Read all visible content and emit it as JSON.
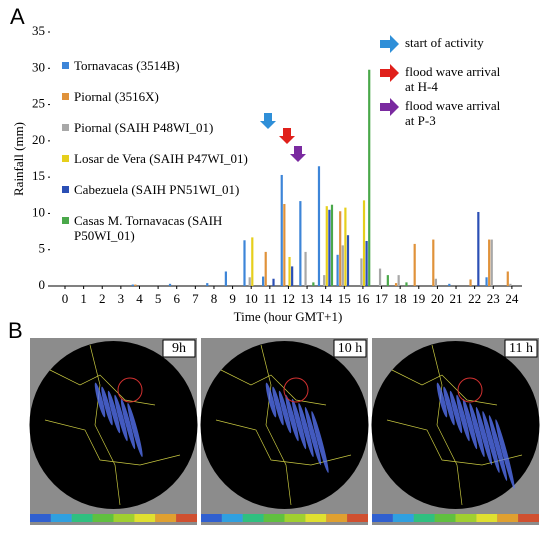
{
  "panel_a": "A",
  "panel_b": "B",
  "chart_data": {
    "type": "bar",
    "ylabel": "Rainfall (mm)",
    "xlabel": "Time (hour GMT+1)",
    "categories": [
      "0",
      "1",
      "2",
      "3",
      "4",
      "5",
      "6",
      "7",
      "8",
      "9",
      "10",
      "11",
      "12",
      "13",
      "14",
      "15",
      "16",
      "17",
      "18",
      "19",
      "20",
      "21",
      "22",
      "23",
      "24"
    ],
    "ylim": [
      0,
      35
    ],
    "yticks": [
      0,
      5,
      10,
      15,
      20,
      25,
      30,
      35
    ],
    "series": [
      {
        "name": "Tornavacas (3514B)",
        "color": "#3d85d8",
        "values": [
          0,
          0,
          0,
          0,
          0.2,
          0,
          0.3,
          0,
          0.4,
          2,
          6.3,
          1.3,
          15.3,
          11.7,
          16.5,
          4.3,
          0,
          0,
          0,
          0,
          0,
          0.3,
          0,
          1.2,
          0
        ]
      },
      {
        "name": "Piornal (3516X)",
        "color": "#e0923a",
        "values": [
          0,
          0,
          0,
          0,
          0.2,
          0,
          0,
          0,
          0,
          0,
          0,
          4.7,
          11.3,
          0,
          0,
          10.3,
          0,
          0,
          0.4,
          5.8,
          6.4,
          0,
          0.9,
          6.4,
          2
        ]
      },
      {
        "name": "Piornal (SAIH P48WI_01)",
        "color": "#a8a8a8",
        "values": [
          0,
          0,
          0,
          0,
          0,
          0,
          0,
          0,
          0,
          0,
          1.2,
          0,
          0,
          4.7,
          1.5,
          5.6,
          3.8,
          2.4,
          1.5,
          0,
          1,
          0,
          0,
          6.4,
          0.3
        ]
      },
      {
        "name": "Losar de Vera (SAIH P47WI_01)",
        "color": "#e6cf1c",
        "values": [
          0,
          0,
          0,
          0,
          0,
          0,
          0,
          0,
          0,
          0,
          6.7,
          0,
          4,
          0,
          11,
          10.8,
          11.8,
          0,
          0,
          0,
          0,
          0,
          0,
          0,
          0
        ]
      },
      {
        "name": "Cabezuela (SAIH PN51WI_01)",
        "color": "#2b4fb5",
        "values": [
          0,
          0,
          0,
          0,
          0,
          0,
          0,
          0,
          0,
          0,
          0,
          1,
          2.7,
          0,
          10.5,
          7,
          6.2,
          0,
          0,
          0,
          0,
          0,
          10.2,
          0,
          0
        ]
      },
      {
        "name": "Casas M. Tornavacas (SAIH P50WI_01)",
        "color": "#4aa84a",
        "values": [
          0,
          0,
          0,
          0,
          0,
          0,
          0,
          0,
          0,
          0,
          0,
          0,
          0,
          0.5,
          11.2,
          0,
          29.8,
          1.5,
          0.5,
          0,
          0,
          0,
          0,
          0,
          0
        ]
      }
    ],
    "annotations": [
      {
        "lines": [
          "start of activity"
        ],
        "color": "#2f8fd8"
      },
      {
        "lines": [
          "flood wave arrival",
          "at H-4"
        ],
        "color": "#e0201b"
      },
      {
        "lines": [
          "flood wave arrival",
          "at P-3"
        ],
        "color": "#7a2aa0"
      }
    ]
  },
  "radar_labels": [
    "9h",
    "10 h",
    "11 h"
  ]
}
